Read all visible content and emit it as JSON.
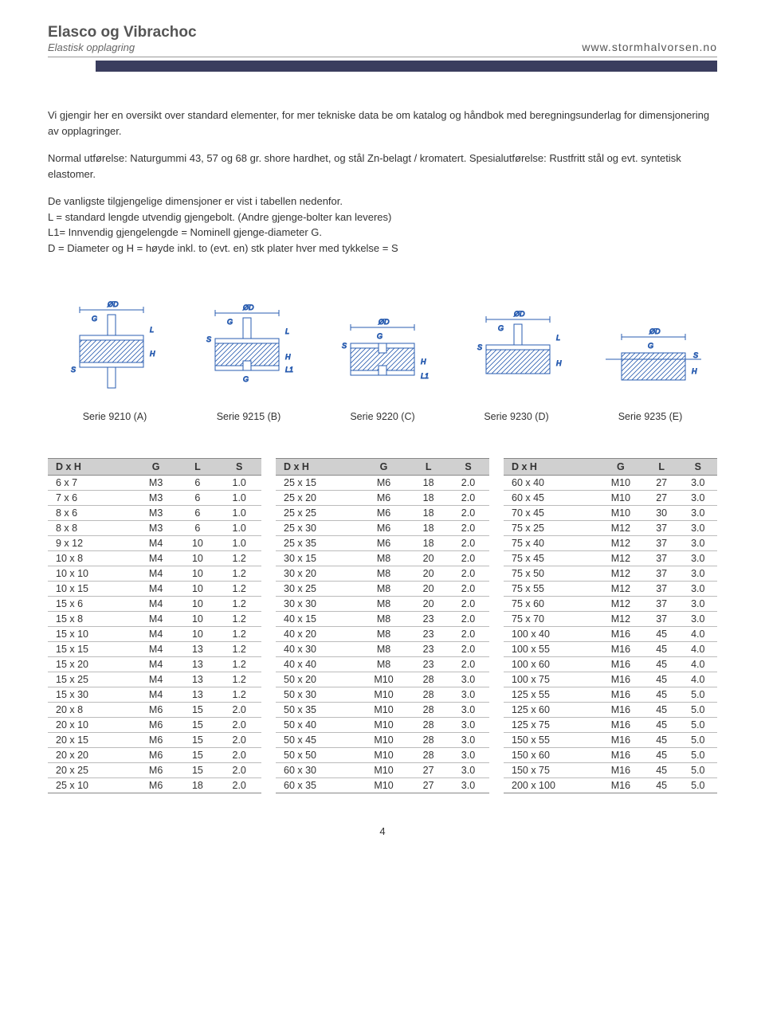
{
  "header": {
    "title": "Elasco og Vibrachoc",
    "subtitle": "Elastisk opplagring",
    "url": "www.stormhalvorsen.no"
  },
  "banner_color": "#3a3d5e",
  "intro": {
    "p1": "Vi gjengir her en oversikt over standard elementer, for mer tekniske data be om katalog og håndbok med beregningsunderlag for dimensjonering av opplagringer.",
    "p2": "Normal utførelse: Naturgummi 43, 57 og 68 gr. shore hardhet, og stål Zn-belagt / kromatert. Spesialutførelse: Rustfritt stål og evt. syntetisk elastomer.",
    "p3": "De vanligste tilgjengelige dimensjoner er vist i tabellen nedenfor.",
    "p4": "L = standard lengde utvendig gjengebolt. (Andre gjenge-bolter kan leveres)",
    "p5": "L1= Innvendig gjengelengde = Nominell gjenge-diameter G.",
    "p6": "D = Diameter og H = høyde inkl. to (evt. en) stk plater hver med tykkelse = S"
  },
  "diagrams": {
    "stroke": "#2a5db0",
    "caption_a": "Serie 9210 (A)",
    "caption_b": "Serie 9215 (B)",
    "caption_c": "Serie 9220 (C)",
    "caption_d": "Serie 9230 (D)",
    "caption_e": "Serie 9235 (E)"
  },
  "table": {
    "headers": [
      "D x H",
      "G",
      "L",
      "S"
    ],
    "col1": [
      [
        "6 x 7",
        "M3",
        "6",
        "1.0"
      ],
      [
        "7 x 6",
        "M3",
        "6",
        "1.0"
      ],
      [
        "8 x 6",
        "M3",
        "6",
        "1.0"
      ],
      [
        "8 x 8",
        "M3",
        "6",
        "1.0"
      ],
      [
        "9 x 12",
        "M4",
        "10",
        "1.0"
      ],
      [
        "10 x 8",
        "M4",
        "10",
        "1.2"
      ],
      [
        "10 x 10",
        "M4",
        "10",
        "1.2"
      ],
      [
        "10 x 15",
        "M4",
        "10",
        "1.2"
      ],
      [
        "15 x 6",
        "M4",
        "10",
        "1.2"
      ],
      [
        "15 x 8",
        "M4",
        "10",
        "1.2"
      ],
      [
        "15 x 10",
        "M4",
        "10",
        "1.2"
      ],
      [
        "15 x 15",
        "M4",
        "13",
        "1.2"
      ],
      [
        "15 x 20",
        "M4",
        "13",
        "1.2"
      ],
      [
        "15 x 25",
        "M4",
        "13",
        "1.2"
      ],
      [
        "15 x 30",
        "M4",
        "13",
        "1.2"
      ],
      [
        "20 x 8",
        "M6",
        "15",
        "2.0"
      ],
      [
        "20 x 10",
        "M6",
        "15",
        "2.0"
      ],
      [
        "20 x 15",
        "M6",
        "15",
        "2.0"
      ],
      [
        "20 x 20",
        "M6",
        "15",
        "2.0"
      ],
      [
        "20 x 25",
        "M6",
        "15",
        "2.0"
      ],
      [
        "25 x 10",
        "M6",
        "18",
        "2.0"
      ]
    ],
    "col2": [
      [
        "25 x 15",
        "M6",
        "18",
        "2.0"
      ],
      [
        "25 x 20",
        "M6",
        "18",
        "2.0"
      ],
      [
        "25 x 25",
        "M6",
        "18",
        "2.0"
      ],
      [
        "25 x 30",
        "M6",
        "18",
        "2.0"
      ],
      [
        "25 x 35",
        "M6",
        "18",
        "2.0"
      ],
      [
        "30 x 15",
        "M8",
        "20",
        "2.0"
      ],
      [
        "30 x 20",
        "M8",
        "20",
        "2.0"
      ],
      [
        "30 x 25",
        "M8",
        "20",
        "2.0"
      ],
      [
        "30 x 30",
        "M8",
        "20",
        "2.0"
      ],
      [
        "40 x 15",
        "M8",
        "23",
        "2.0"
      ],
      [
        "40 x 20",
        "M8",
        "23",
        "2.0"
      ],
      [
        "40 x 30",
        "M8",
        "23",
        "2.0"
      ],
      [
        "40 x 40",
        "M8",
        "23",
        "2.0"
      ],
      [
        "50 x 20",
        "M10",
        "28",
        "3.0"
      ],
      [
        "50 x 30",
        "M10",
        "28",
        "3.0"
      ],
      [
        "50 x 35",
        "M10",
        "28",
        "3.0"
      ],
      [
        "50 x 40",
        "M10",
        "28",
        "3.0"
      ],
      [
        "50 x 45",
        "M10",
        "28",
        "3.0"
      ],
      [
        "50 x 50",
        "M10",
        "28",
        "3.0"
      ],
      [
        "60 x 30",
        "M10",
        "27",
        "3.0"
      ],
      [
        "60 x 35",
        "M10",
        "27",
        "3.0"
      ]
    ],
    "col3": [
      [
        "60 x 40",
        "M10",
        "27",
        "3.0"
      ],
      [
        "60 x 45",
        "M10",
        "27",
        "3.0"
      ],
      [
        "70 x 45",
        "M10",
        "30",
        "3.0"
      ],
      [
        "75 x 25",
        "M12",
        "37",
        "3.0"
      ],
      [
        "75 x 40",
        "M12",
        "37",
        "3.0"
      ],
      [
        "75 x 45",
        "M12",
        "37",
        "3.0"
      ],
      [
        "75 x 50",
        "M12",
        "37",
        "3.0"
      ],
      [
        "75 x 55",
        "M12",
        "37",
        "3.0"
      ],
      [
        "75 x 60",
        "M12",
        "37",
        "3.0"
      ],
      [
        "75 x 70",
        "M12",
        "37",
        "3.0"
      ],
      [
        "100 x 40",
        "M16",
        "45",
        "4.0"
      ],
      [
        "100 x 55",
        "M16",
        "45",
        "4.0"
      ],
      [
        "100 x 60",
        "M16",
        "45",
        "4.0"
      ],
      [
        "100 x 75",
        "M16",
        "45",
        "4.0"
      ],
      [
        "125 x 55",
        "M16",
        "45",
        "5.0"
      ],
      [
        "125 x 60",
        "M16",
        "45",
        "5.0"
      ],
      [
        "125 x 75",
        "M16",
        "45",
        "5.0"
      ],
      [
        "150 x 55",
        "M16",
        "45",
        "5.0"
      ],
      [
        "150 x 60",
        "M16",
        "45",
        "5.0"
      ],
      [
        "150 x 75",
        "M16",
        "45",
        "5.0"
      ],
      [
        "200 x 100",
        "M16",
        "45",
        "5.0"
      ]
    ]
  },
  "page_number": "4"
}
